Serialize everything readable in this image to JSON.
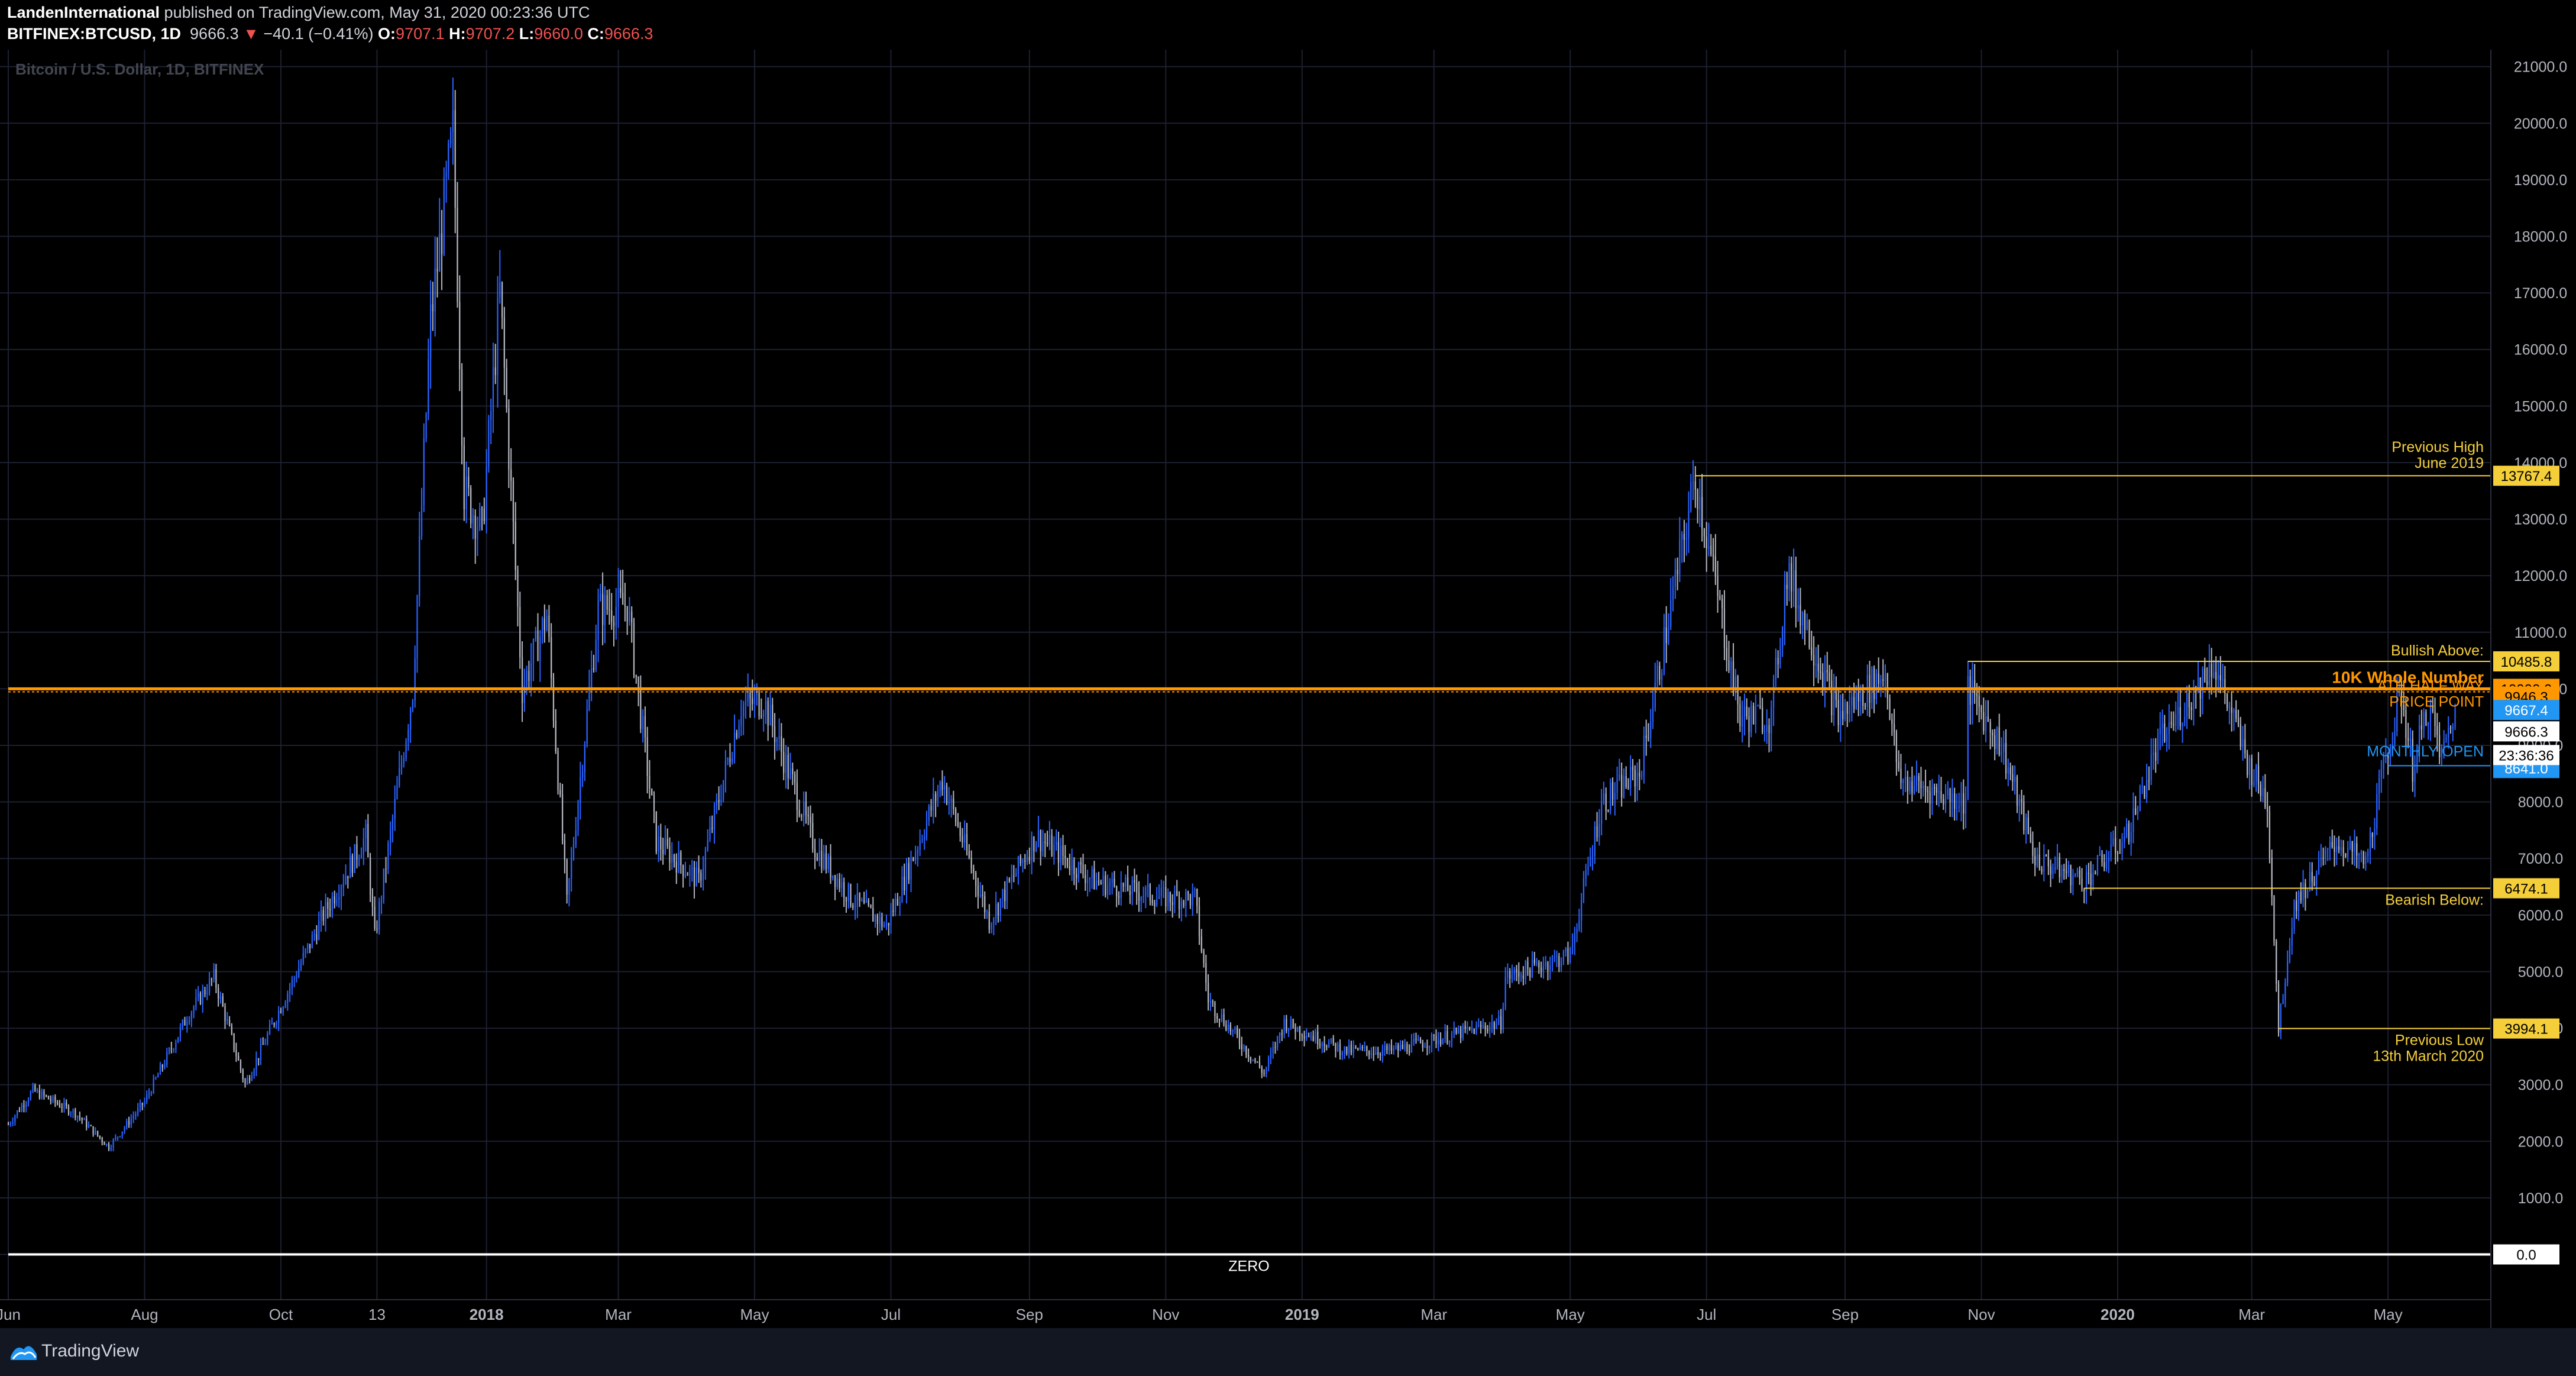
{
  "header": {
    "publisher": "LandenInternational",
    "published_text": "published on TradingView.com, May 31, 2020 00:23:36 UTC",
    "symbol": "BITFINEX:BTCUSD, 1D",
    "last": "9666.3",
    "change_arrow": "▼",
    "change": "−40.1 (−0.41%)",
    "o_label": "O:",
    "o": "9707.1",
    "h_label": "H:",
    "h": "9707.2",
    "l_label": "L:",
    "l": "9660.0",
    "c_label": "C:",
    "c": "9666.3"
  },
  "footer": {
    "brand": "TradingView",
    "logo_icon": "tradingview-logo-icon"
  },
  "chart_data": {
    "type": "candlestick",
    "watermark": "Bitcoin / U.S. Dollar, 1D, BITFINEX",
    "ylim": [
      -800,
      21300
    ],
    "y_ticks": [
      0,
      1000,
      2000,
      3000,
      4000,
      5000,
      6000,
      7000,
      8000,
      9000,
      10000,
      11000,
      12000,
      13000,
      14000,
      15000,
      16000,
      17000,
      18000,
      19000,
      20000,
      21000
    ],
    "x_ticks": [
      {
        "date": "2017-06-01",
        "label": "Jun"
      },
      {
        "date": "2017-08-01",
        "label": "Aug"
      },
      {
        "date": "2017-10-01",
        "label": "Oct"
      },
      {
        "date": "2017-11-13",
        "label": "13"
      },
      {
        "date": "2018-01-01",
        "label": "2018"
      },
      {
        "date": "2018-03-01",
        "label": "Mar"
      },
      {
        "date": "2018-05-01",
        "label": "May"
      },
      {
        "date": "2018-07-01",
        "label": "Jul"
      },
      {
        "date": "2018-09-01",
        "label": "Sep"
      },
      {
        "date": "2018-11-01",
        "label": "Nov"
      },
      {
        "date": "2019-01-01",
        "label": "2019"
      },
      {
        "date": "2019-03-01",
        "label": "Mar"
      },
      {
        "date": "2019-05-01",
        "label": "May"
      },
      {
        "date": "2019-07-01",
        "label": "Jul"
      },
      {
        "date": "2019-09-01",
        "label": "Sep"
      },
      {
        "date": "2019-11-01",
        "label": "Nov"
      },
      {
        "date": "2020-01-01",
        "label": "2020"
      },
      {
        "date": "2020-03-01",
        "label": "Mar"
      },
      {
        "date": "2020-05-01",
        "label": "May"
      }
    ],
    "x_range": [
      "2017-06-01",
      "2020-06-16"
    ],
    "price_path": [
      [
        "2017-06-01",
        2300
      ],
      [
        "2017-06-12",
        2900
      ],
      [
        "2017-07-01",
        2500
      ],
      [
        "2017-07-16",
        1900
      ],
      [
        "2017-08-01",
        2700
      ],
      [
        "2017-08-20",
        4200
      ],
      [
        "2017-09-01",
        4900
      ],
      [
        "2017-09-15",
        3000
      ],
      [
        "2017-09-30",
        4300
      ],
      [
        "2017-10-20",
        6000
      ],
      [
        "2017-11-08",
        7400
      ],
      [
        "2017-11-12",
        5600
      ],
      [
        "2017-11-29",
        10000
      ],
      [
        "2017-12-07",
        16500
      ],
      [
        "2017-12-17",
        19800
      ],
      [
        "2017-12-22",
        13500
      ],
      [
        "2017-12-30",
        12800
      ],
      [
        "2018-01-07",
        17000
      ],
      [
        "2018-01-17",
        10000
      ],
      [
        "2018-01-28",
        11300
      ],
      [
        "2018-02-06",
        6200
      ],
      [
        "2018-02-20",
        11400
      ],
      [
        "2018-03-05",
        11500
      ],
      [
        "2018-03-18",
        7300
      ],
      [
        "2018-04-06",
        6600
      ],
      [
        "2018-04-25",
        9700
      ],
      [
        "2018-05-05",
        9800
      ],
      [
        "2018-05-28",
        7200
      ],
      [
        "2018-06-13",
        6300
      ],
      [
        "2018-06-29",
        5800
      ],
      [
        "2018-07-24",
        8400
      ],
      [
        "2018-08-14",
        5900
      ],
      [
        "2018-09-04",
        7400
      ],
      [
        "2018-09-30",
        6600
      ],
      [
        "2018-10-31",
        6300
      ],
      [
        "2018-11-14",
        6300
      ],
      [
        "2018-11-20",
        4500
      ],
      [
        "2018-12-15",
        3200
      ],
      [
        "2018-12-24",
        4100
      ],
      [
        "2019-01-20",
        3600
      ],
      [
        "2019-02-10",
        3600
      ],
      [
        "2019-03-31",
        4100
      ],
      [
        "2019-04-02",
        4900
      ],
      [
        "2019-05-01",
        5300
      ],
      [
        "2019-05-15",
        8000
      ],
      [
        "2019-06-01",
        8500
      ],
      [
        "2019-06-26",
        13767
      ],
      [
        "2019-07-16",
        9500
      ],
      [
        "2019-07-30",
        9500
      ],
      [
        "2019-08-06",
        12100
      ],
      [
        "2019-08-29",
        9500
      ],
      [
        "2019-09-19",
        10300
      ],
      [
        "2019-09-25",
        8400
      ],
      [
        "2019-10-25",
        8000
      ],
      [
        "2019-10-26",
        10000
      ],
      [
        "2019-11-10",
        9000
      ],
      [
        "2019-11-25",
        7000
      ],
      [
        "2019-12-17",
        6600
      ],
      [
        "2020-01-05",
        7400
      ],
      [
        "2020-01-19",
        9000
      ],
      [
        "2020-02-13",
        10485
      ],
      [
        "2020-02-28",
        8700
      ],
      [
        "2020-03-08",
        8000
      ],
      [
        "2020-03-13",
        3994
      ],
      [
        "2020-03-20",
        6200
      ],
      [
        "2020-04-08",
        7300
      ],
      [
        "2020-04-21",
        6900
      ],
      [
        "2020-04-30",
        8800
      ],
      [
        "2020-05-07",
        9900
      ],
      [
        "2020-05-12",
        8600
      ],
      [
        "2020-05-19",
        9700
      ],
      [
        "2020-05-25",
        8800
      ],
      [
        "2020-05-31",
        9666
      ]
    ],
    "levels": [
      {
        "price": 13767.4,
        "color": "#f5cf3a",
        "label": "Previous High",
        "label2": "June 2019",
        "badge": "13767.4",
        "from": "2019-06-26"
      },
      {
        "price": 10485.8,
        "color": "#f5cf3a",
        "label": "Bullish Above:",
        "badge": "10485.8",
        "from": "2019-10-26",
        "icon": "bull-icon"
      },
      {
        "price": 10000.0,
        "color": "#ff9800",
        "label": "10K Whole Number",
        "badge": "10000.0",
        "from": "2017-06-01"
      },
      {
        "price": 9946.3,
        "color": "#ff9800",
        "label": "ATH HALF WAY",
        "label2": "PRICE POINT",
        "badge": "9946.3",
        "from": "2017-06-01"
      },
      {
        "price": 9667.4,
        "color": "#2196f3",
        "badge": "9667.4"
      },
      {
        "price": 9666.3,
        "color": "#ffffff",
        "badge": "9666.3"
      },
      {
        "price": 8641.0,
        "color": "#2196f3",
        "label": "MONTHLY OPEN",
        "badge": "8641.0",
        "from": "2020-05-01"
      },
      {
        "price": 6474.1,
        "color": "#f5cf3a",
        "label": "Bearish Below:",
        "badge": "6474.1",
        "from": "2019-12-17",
        "icon": "bear-icon"
      },
      {
        "price": 3994.1,
        "color": "#f5cf3a",
        "label": "Previous Low",
        "label2": "13th March 2020",
        "badge": "3994.1",
        "from": "2020-03-13"
      },
      {
        "price": 0.0,
        "color": "#ffffff",
        "label": "ZERO",
        "badge": "0.0",
        "from": "2017-06-01"
      }
    ],
    "countdown_badge": "23:36:36",
    "colors": {
      "up": "#2962ff",
      "down": "#b2b5be",
      "grid": "#1c2030",
      "background": "#000000"
    }
  }
}
